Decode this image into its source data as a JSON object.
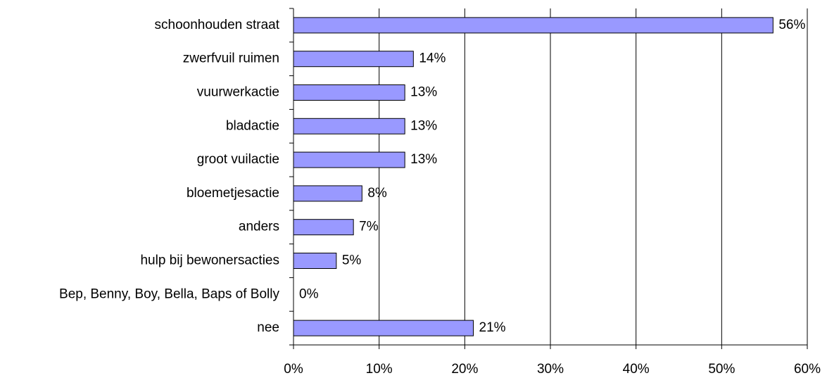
{
  "chart_data": {
    "type": "bar",
    "orientation": "horizontal",
    "categories": [
      "schoonhouden straat",
      "zwerfvuil ruimen",
      "vuurwerkactie",
      "bladactie",
      "groot vuilactie",
      "bloemetjesactie",
      "anders",
      "hulp bij bewonersacties",
      "Bep, Benny, Boy, Bella, Baps of Bolly",
      "nee"
    ],
    "values": [
      56,
      14,
      13,
      13,
      13,
      8,
      7,
      5,
      0,
      21
    ],
    "value_labels": [
      "56%",
      "14%",
      "13%",
      "13%",
      "13%",
      "8%",
      "7%",
      "5%",
      "0%",
      "21%"
    ],
    "color": "#9999ff",
    "xlim": [
      0,
      60
    ],
    "xticks": [
      {
        "value": 0,
        "label": "0%"
      },
      {
        "value": 10,
        "label": "10%"
      },
      {
        "value": 20,
        "label": "20%"
      },
      {
        "value": 30,
        "label": "30%"
      },
      {
        "value": 40,
        "label": "40%"
      },
      {
        "value": 50,
        "label": "50%"
      },
      {
        "value": 60,
        "label": "60%"
      }
    ],
    "grid": true
  }
}
